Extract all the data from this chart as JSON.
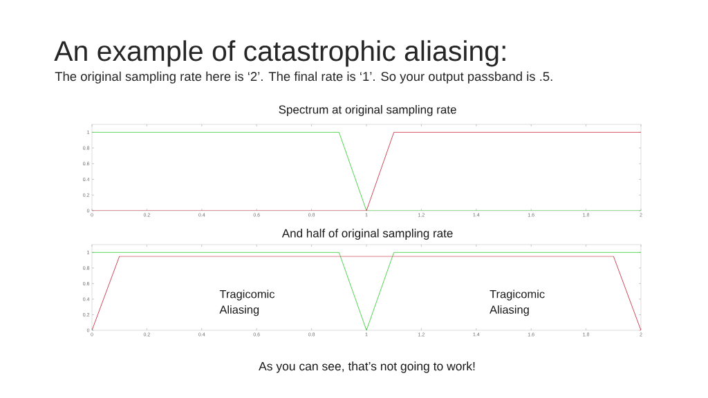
{
  "chart_data": [
    {
      "type": "other",
      "title": "An example of catastrophic aliasing:",
      "subtitle": "The original sampling rate here is ‘2’.  The final rate is ‘1’. So your output passband is .5.",
      "annotations": [
        "As you can see, that’s not going to work!"
      ]
    },
    {
      "type": "line",
      "title": "Spectrum at original sampling rate",
      "xlim": [
        0,
        2
      ],
      "ylim": [
        0,
        1.1
      ],
      "xticks": [
        0,
        0.2,
        0.4,
        0.6,
        0.8,
        1,
        1.2,
        1.4,
        1.6,
        1.8,
        2
      ],
      "yticks": [
        0,
        0.2,
        0.4,
        0.6,
        0.8,
        1
      ],
      "series": [
        {
          "color": "#3ccf3c",
          "x": [
            0,
            0.9,
            1,
            2
          ],
          "values": [
            1,
            1,
            0,
            0
          ]
        },
        {
          "color": "#c83246",
          "x": [
            0,
            1,
            1.1,
            2
          ],
          "values": [
            0,
            0,
            1,
            1
          ]
        }
      ]
    },
    {
      "type": "line",
      "title": "And half of original sampling rate",
      "xlim": [
        0,
        2
      ],
      "ylim": [
        0,
        1.1
      ],
      "xticks": [
        0,
        0.2,
        0.4,
        0.6,
        0.8,
        1,
        1.2,
        1.4,
        1.6,
        1.8,
        2
      ],
      "yticks": [
        0,
        0.2,
        0.4,
        0.6,
        0.8,
        1
      ],
      "series": [
        {
          "color": "#3ccf3c",
          "x": [
            0,
            0.9,
            1,
            1.1,
            2
          ],
          "values": [
            1,
            1,
            0,
            1,
            1
          ]
        },
        {
          "color": "#c83246",
          "x": [
            0,
            0.1,
            1.9,
            2
          ],
          "values": [
            0,
            0.95,
            0.95,
            0
          ]
        }
      ],
      "annotations": [
        "Tragicomic Aliasing",
        "Tragicomic Aliasing"
      ]
    }
  ]
}
